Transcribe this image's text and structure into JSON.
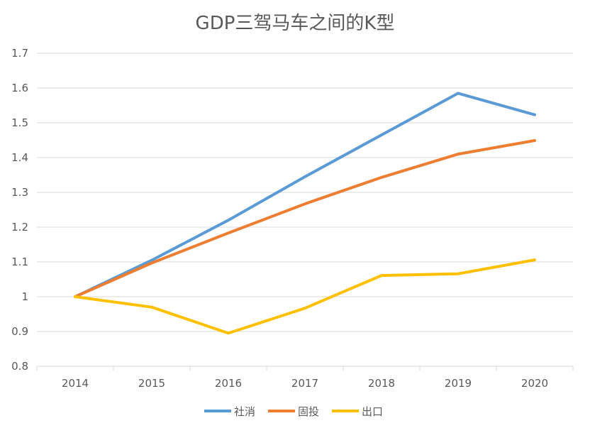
{
  "chart_data": {
    "type": "line",
    "title": "GDP三驾马车之间的K型",
    "xlabel": "",
    "ylabel": "",
    "categories": [
      "2014",
      "2015",
      "2016",
      "2017",
      "2018",
      "2019",
      "2020"
    ],
    "ylim": [
      0.8,
      1.7
    ],
    "yticks": [
      "0.8",
      "0.9",
      "1",
      "1.1",
      "1.2",
      "1.3",
      "1.4",
      "1.5",
      "1.6",
      "1.7"
    ],
    "grid": true,
    "legend_position": "bottom",
    "series": [
      {
        "name": "社消",
        "color": "#5B9BD5",
        "values": [
          1.0,
          1.105,
          1.22,
          1.345,
          1.465,
          1.585,
          1.523
        ]
      },
      {
        "name": "固投",
        "color": "#ED7D31",
        "values": [
          1.0,
          1.097,
          1.183,
          1.267,
          1.343,
          1.41,
          1.449
        ]
      },
      {
        "name": "出口",
        "color": "#FFC000",
        "values": [
          1.0,
          0.97,
          0.895,
          0.967,
          1.061,
          1.066,
          1.106
        ]
      }
    ]
  }
}
